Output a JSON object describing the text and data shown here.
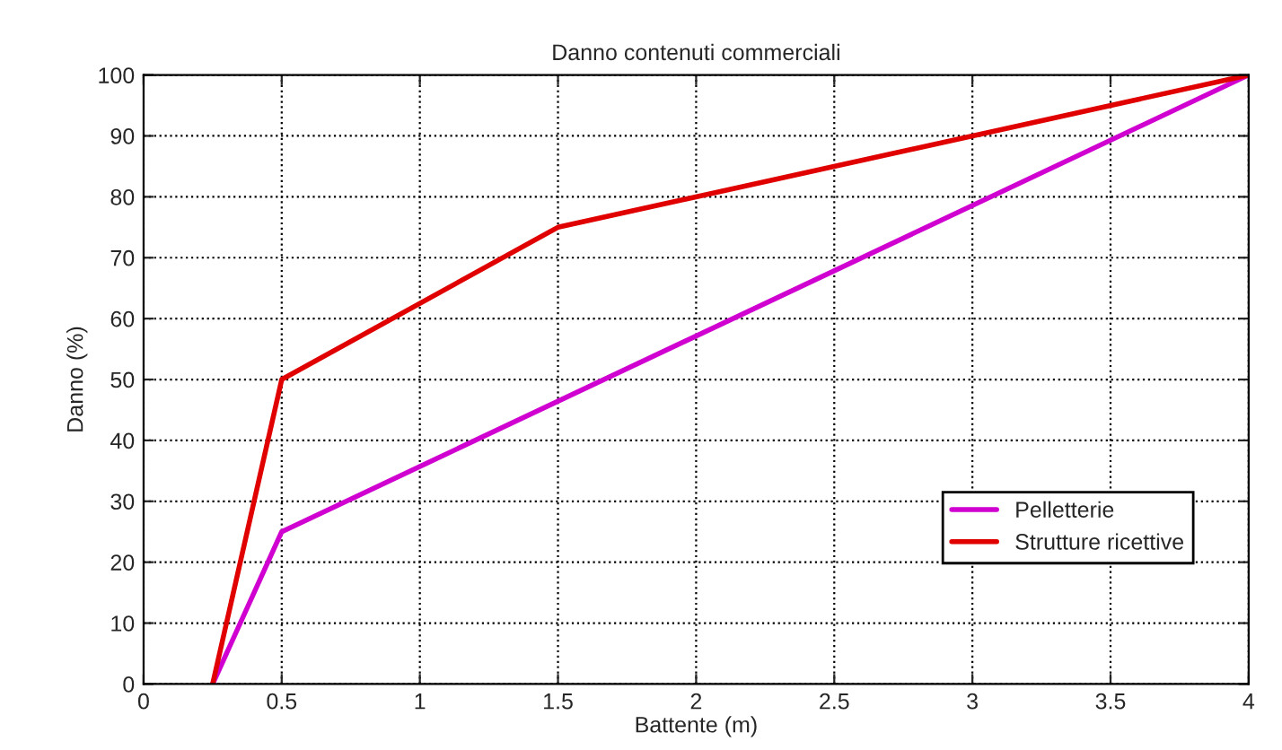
{
  "chart_data": {
    "type": "line",
    "title": "Danno contenuti commerciali",
    "xlabel": "Battente (m)",
    "ylabel": "Danno (%)",
    "series": [
      {
        "name": "Pelletterie",
        "color": "#d000d0",
        "x": [
          0.25,
          0.5,
          4
        ],
        "values": [
          0,
          25,
          100
        ]
      },
      {
        "name": "Strutture ricettive",
        "color": "#e00000",
        "x": [
          0.25,
          0.5,
          1.5,
          4
        ],
        "values": [
          0,
          50,
          75,
          100
        ]
      }
    ],
    "xlim": [
      0,
      4
    ],
    "xticks": [
      0,
      0.5,
      1,
      1.5,
      2,
      2.5,
      3,
      3.5,
      4
    ],
    "ylim": [
      0,
      100
    ],
    "yticks": [
      0,
      10,
      20,
      30,
      40,
      50,
      60,
      70,
      80,
      90,
      100
    ],
    "grid": true,
    "line_style": "solid",
    "marker": "none",
    "legend": "bottom right"
  }
}
